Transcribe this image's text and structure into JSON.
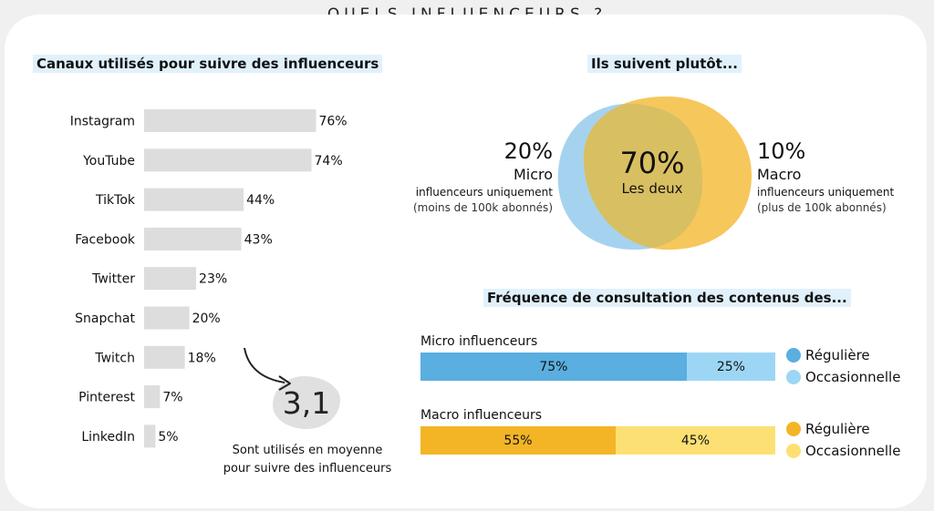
{
  "page_title": "QUELS INFLUENCEURS ?",
  "colors": {
    "bar": "#dddddd",
    "micro_regular": "#5aaee0",
    "micro_occasional": "#9dd6f5",
    "macro_regular": "#f3b526",
    "macro_occasional": "#fde073",
    "venn_left": "#a5d3ef",
    "venn_right": "#f6c75b",
    "venn_overlap": "#d8bf62"
  },
  "chart_data": [
    {
      "type": "bar",
      "orientation": "horizontal",
      "title": "Canaux utilisés pour suivre des influenceurs",
      "categories": [
        "Instagram",
        "YouTube",
        "TikTok",
        "Facebook",
        "Twitter",
        "Snapchat",
        "Twitch",
        "Pinterest",
        "LinkedIn"
      ],
      "values": [
        76,
        74,
        44,
        43,
        23,
        20,
        18,
        7,
        5
      ],
      "value_labels": [
        "76%",
        "74%",
        "44%",
        "43%",
        "23%",
        "20%",
        "18%",
        "7%",
        "5%"
      ],
      "annotation": {
        "value": "3,1",
        "line1": "Sont utilisés en moyenne",
        "line2": "pour suivre des influenceurs"
      }
    },
    {
      "type": "venn",
      "title": "Ils suivent plutôt...",
      "values": [
        20,
        70,
        10
      ],
      "left": {
        "value": "20%",
        "name": "Micro",
        "line1": "influenceurs uniquement",
        "line2": "(moins de 100k abonnés)"
      },
      "overlap": {
        "value": "70%",
        "name": "Les deux"
      },
      "right": {
        "value": "10%",
        "name": "Macro",
        "line1": "influenceurs uniquement",
        "line2": "(plus de 100k abonnés)"
      }
    },
    {
      "type": "stacked_bar",
      "title": "Fréquence de consultation des contenus des...",
      "rows": [
        {
          "label": "Micro influenceurs",
          "segments": [
            {
              "name": "Régulière",
              "value": 75,
              "label": "75%"
            },
            {
              "name": "Occasionnelle",
              "value": 25,
              "label": "25%"
            }
          ]
        },
        {
          "label": "Macro influenceurs",
          "segments": [
            {
              "name": "Régulière",
              "value": 55,
              "label": "55%"
            },
            {
              "name": "Occasionnelle",
              "value": 45,
              "label": "45%"
            }
          ]
        }
      ]
    }
  ]
}
